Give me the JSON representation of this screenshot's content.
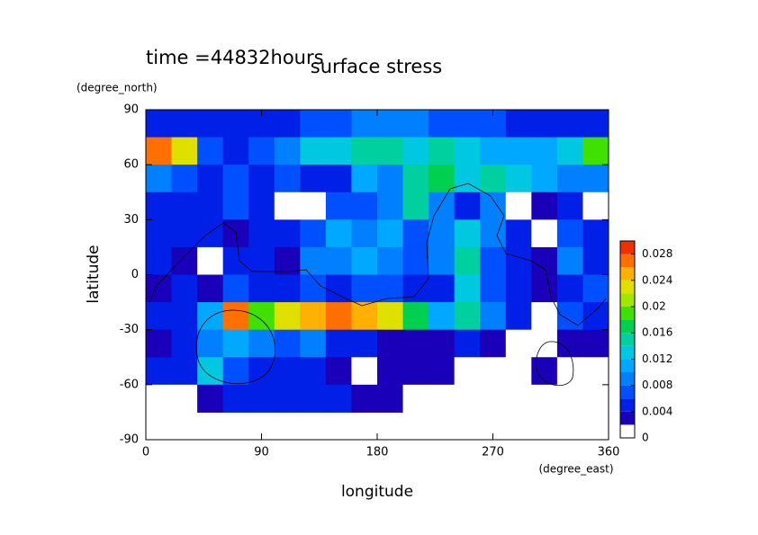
{
  "chart_data": {
    "type": "contour",
    "title": "surface stress",
    "subtitle": "time =44832hours",
    "x_label": "longitude",
    "x_unit": "(degree_east)",
    "y_label": "latitude",
    "y_unit": "(degree_north)",
    "xlim": [
      0,
      360
    ],
    "ylim": [
      -90,
      90
    ],
    "xticks": [
      0,
      90,
      180,
      270,
      360
    ],
    "yticks": [
      90,
      60,
      30,
      0,
      -30,
      -60,
      -90
    ],
    "x": [
      10,
      30,
      50,
      70,
      90,
      110,
      130,
      150,
      170,
      190,
      210,
      230,
      250,
      270,
      290,
      310,
      330,
      350
    ],
    "y": [
      82.5,
      67.5,
      52.5,
      37.5,
      22.5,
      7.5,
      -7.5,
      -22.5,
      -37.5,
      -52.5,
      -67.5,
      -82.5
    ],
    "z": [
      [
        0.005,
        0.005,
        0.004,
        0.004,
        0.004,
        0.005,
        0.006,
        0.007,
        0.008,
        0.008,
        0.008,
        0.007,
        0.006,
        0.006,
        0.005,
        0.005,
        0.005,
        0.005
      ],
      [
        0.026,
        0.022,
        0.007,
        0.005,
        0.006,
        0.009,
        0.012,
        0.013,
        0.014,
        0.014,
        0.013,
        0.014,
        0.012,
        0.01,
        0.01,
        0.011,
        0.012,
        0.018
      ],
      [
        0.008,
        0.006,
        0.005,
        0.006,
        0.005,
        0.006,
        0.004,
        0.005,
        0.01,
        0.008,
        0.014,
        0.016,
        0.012,
        0.014,
        0.012,
        0.01,
        0.008,
        0.009
      ],
      [
        0.004,
        0.005,
        0.005,
        0.006,
        0.004,
        0.001,
        0.001,
        0.007,
        0.006,
        0.009,
        0.014,
        0.009,
        0.005,
        0.008,
        0.001,
        0.002,
        0.004,
        0.001
      ],
      [
        0.005,
        0.004,
        0.005,
        0.003,
        0.004,
        0.005,
        0.007,
        0.01,
        0.008,
        0.01,
        0.007,
        0.008,
        0.012,
        0.008,
        0.004,
        0.001,
        0.006,
        0.005
      ],
      [
        0.004,
        0.003,
        0.001,
        0.005,
        0.004,
        0.003,
        0.008,
        0.009,
        0.011,
        0.009,
        0.006,
        0.008,
        0.014,
        0.007,
        0.004,
        0.003,
        0.008,
        0.005
      ],
      [
        0.003,
        0.004,
        0.003,
        0.006,
        0.005,
        0.004,
        0.006,
        0.005,
        0.006,
        0.006,
        0.005,
        0.004,
        0.012,
        0.006,
        0.004,
        0.002,
        0.005,
        0.007
      ],
      [
        0.004,
        0.005,
        0.01,
        0.026,
        0.018,
        0.022,
        0.024,
        0.026,
        0.024,
        0.022,
        0.016,
        0.01,
        0.014,
        0.008,
        0.004,
        0.001,
        0.006,
        0.005
      ],
      [
        0.003,
        0.004,
        0.008,
        0.01,
        0.008,
        0.006,
        0.008,
        0.004,
        0.004,
        0.003,
        0.002,
        0.003,
        0.004,
        0.003,
        0.001,
        0.001,
        0.003,
        0.002
      ],
      [
        0.004,
        0.005,
        0.012,
        0.006,
        0.005,
        0.004,
        0.004,
        0.003,
        0.001,
        0.002,
        0.003,
        0.003,
        0.001,
        0.001,
        0.001,
        0.003,
        0.001,
        0.001
      ],
      [
        0.001,
        0.001,
        0.003,
        0.004,
        0.004,
        0.005,
        0.005,
        0.004,
        0.003,
        0.002,
        0.001,
        0.001,
        0.001,
        0.001,
        0.001,
        0.001,
        0.001,
        0.001
      ],
      [
        null,
        null,
        null,
        null,
        null,
        null,
        null,
        null,
        null,
        null,
        null,
        null,
        null,
        null,
        null,
        null,
        null,
        null
      ]
    ],
    "levels": [
      0,
      0.002,
      0.004,
      0.006,
      0.008,
      0.01,
      0.012,
      0.014,
      0.016,
      0.018,
      0.02,
      0.022,
      0.024,
      0.026,
      0.028,
      0.03
    ],
    "colors": [
      "#ffffff",
      "#1a00b8",
      "#0020e8",
      "#0050ff",
      "#0080ff",
      "#00a8ff",
      "#00c8e0",
      "#00d0a0",
      "#00d050",
      "#40e000",
      "#a0e800",
      "#e0e000",
      "#ffb000",
      "#ff7000",
      "#f03000"
    ],
    "cticks": [
      0,
      0.004,
      0.008,
      0.012,
      0.016,
      0.02,
      0.024,
      0.028
    ]
  }
}
